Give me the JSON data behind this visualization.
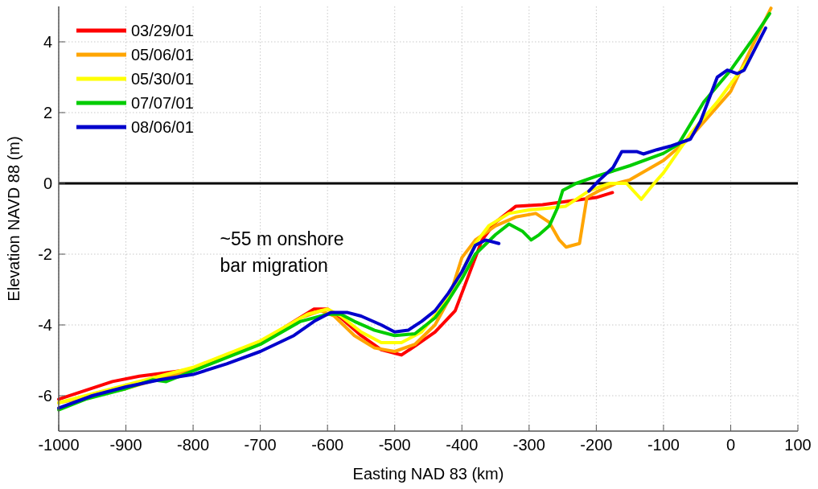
{
  "chart_data": {
    "type": "line",
    "xlabel": "Easting NAD 83 (km)",
    "ylabel": "Elevation NAVD 88 (m)",
    "xlim": [
      -1000,
      100
    ],
    "xticks": [
      -1000,
      -900,
      -800,
      -700,
      -600,
      -500,
      -400,
      -300,
      -200,
      -100,
      0,
      100
    ],
    "ylim": [
      -7,
      5
    ],
    "yticks": [
      -6,
      -4,
      -2,
      0,
      2,
      4
    ],
    "grid": true,
    "legend": "top left",
    "line_style": "solid",
    "marker": "none",
    "ref_lines": [
      {
        "axis": "y",
        "value": 0,
        "color": "#000000"
      }
    ],
    "annotations": [
      "~55 m onshore bar migration"
    ],
    "series": [
      {
        "name": "03/29/01",
        "color": "#ff0000",
        "x": [
          -1000,
          -960,
          -920,
          -880,
          -840,
          -800,
          -750,
          -700,
          -650,
          -620,
          -600,
          -580,
          -550,
          -520,
          -490,
          -470,
          -440,
          -410,
          -390,
          -370,
          -350,
          -320,
          -280,
          -240,
          -200,
          -176
        ],
        "values": [
          -6.1,
          -5.85,
          -5.6,
          -5.45,
          -5.35,
          -5.25,
          -4.9,
          -4.5,
          -3.9,
          -3.55,
          -3.55,
          -3.8,
          -4.3,
          -4.7,
          -4.85,
          -4.6,
          -4.2,
          -3.6,
          -2.6,
          -1.6,
          -1.1,
          -0.65,
          -0.6,
          -0.5,
          -0.4,
          -0.26
        ]
      },
      {
        "name": "05/06/01",
        "color": "#ffa500",
        "x": [
          -1000,
          -900,
          -800,
          -700,
          -640,
          -610,
          -590,
          -560,
          -530,
          -500,
          -470,
          -440,
          -420,
          -400,
          -380,
          -350,
          -320,
          -290,
          -270,
          -255,
          -245,
          -225,
          -214,
          -195,
          -170,
          -150,
          -100,
          -60,
          0,
          30,
          60
        ],
        "values": [
          -6.2,
          -5.8,
          -5.25,
          -4.5,
          -3.8,
          -3.6,
          -3.75,
          -4.3,
          -4.65,
          -4.75,
          -4.55,
          -4.0,
          -3.3,
          -2.1,
          -1.6,
          -1.2,
          -0.95,
          -0.85,
          -1.1,
          -1.6,
          -1.8,
          -1.7,
          -0.4,
          -0.2,
          0.0,
          0.1,
          0.65,
          1.3,
          2.6,
          3.8,
          4.95
        ]
      },
      {
        "name": "05/30/01",
        "color": "#ffff00",
        "x": [
          -1000,
          -800,
          -700,
          -630,
          -600,
          -580,
          -550,
          -520,
          -490,
          -460,
          -430,
          -400,
          -380,
          -360,
          -330,
          -300,
          -270,
          -246,
          -210,
          -180,
          -155,
          -133,
          -114,
          -100,
          -58,
          -20,
          29
        ],
        "values": [
          -6.2,
          -5.2,
          -4.45,
          -3.7,
          -3.55,
          -3.75,
          -4.2,
          -4.5,
          -4.5,
          -4.2,
          -3.5,
          -2.5,
          -1.7,
          -1.2,
          -0.85,
          -0.75,
          -0.7,
          -0.65,
          -0.2,
          0.0,
          0.0,
          -0.45,
          0.0,
          0.3,
          1.45,
          2.3,
          3.55
        ]
      },
      {
        "name": "07/07/01",
        "color": "#00cc00",
        "x": [
          -1000,
          -960,
          -900,
          -860,
          -840,
          -800,
          -700,
          -640,
          -600,
          -580,
          -560,
          -530,
          -500,
          -470,
          -440,
          -420,
          -400,
          -380,
          -350,
          -330,
          -310,
          -297,
          -285,
          -270,
          -258,
          -250,
          -230,
          -200,
          -150,
          -100,
          -78,
          -40,
          0,
          30,
          58
        ],
        "values": [
          -6.4,
          -6.1,
          -5.8,
          -5.55,
          -5.6,
          -5.3,
          -4.55,
          -3.9,
          -3.7,
          -3.7,
          -3.9,
          -4.15,
          -4.3,
          -4.25,
          -3.8,
          -3.3,
          -2.7,
          -2.0,
          -1.45,
          -1.15,
          -1.35,
          -1.6,
          -1.45,
          -1.2,
          -0.7,
          -0.2,
          0.0,
          0.2,
          0.5,
          0.85,
          1.1,
          2.3,
          3.2,
          4.0,
          4.8
        ]
      },
      {
        "name": "08/06/01",
        "color": "#0000cc",
        "x": [
          -1000,
          -950,
          -900,
          -850,
          -800,
          -750,
          -700,
          -650,
          -620,
          -595,
          -570,
          -550,
          -520,
          -500,
          -480,
          -460,
          -440,
          -420,
          -400,
          -380,
          -365,
          -345
        ],
        "values": [
          -6.35,
          -6.0,
          -5.75,
          -5.55,
          -5.4,
          -5.1,
          -4.75,
          -4.3,
          -3.9,
          -3.65,
          -3.65,
          -3.75,
          -4.0,
          -4.2,
          -4.15,
          -3.9,
          -3.6,
          -3.1,
          -2.5,
          -1.75,
          -1.6,
          -1.7
        ]
      },
      {
        "color": "#0000cc",
        "x": [
          -211,
          -195,
          -175,
          -162,
          -140,
          -130,
          -110,
          -90,
          -60,
          -45,
          -30,
          -20,
          -5,
          10,
          20,
          52
        ],
        "values": [
          -0.22,
          0.1,
          0.45,
          0.9,
          0.9,
          0.83,
          0.95,
          1.05,
          1.25,
          1.75,
          2.5,
          3.0,
          3.2,
          3.1,
          3.2,
          4.39
        ]
      }
    ]
  }
}
